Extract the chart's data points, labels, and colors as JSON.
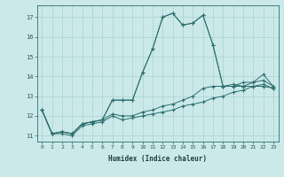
{
  "xlabel": "Humidex (Indice chaleur)",
  "bg_color": "#cbe9e9",
  "grid_color": "#a8d4cc",
  "line_color": "#2d6e6e",
  "xlim": [
    -0.5,
    23.5
  ],
  "ylim": [
    10.7,
    17.6
  ],
  "xticks": [
    0,
    1,
    2,
    3,
    4,
    5,
    6,
    7,
    8,
    9,
    10,
    11,
    12,
    13,
    14,
    15,
    16,
    17,
    18,
    19,
    20,
    21,
    22,
    23
  ],
  "yticks": [
    11,
    12,
    13,
    14,
    15,
    16,
    17
  ],
  "series": [
    [
      12.3,
      11.1,
      11.1,
      11.0,
      11.5,
      11.6,
      11.7,
      12.0,
      11.8,
      11.9,
      12.0,
      12.1,
      12.2,
      12.3,
      12.5,
      12.6,
      12.7,
      12.9,
      13.0,
      13.2,
      13.3,
      13.5,
      13.6,
      13.4
    ],
    [
      12.3,
      11.1,
      11.2,
      11.1,
      11.6,
      11.7,
      11.8,
      12.1,
      12.0,
      12.0,
      12.2,
      12.3,
      12.5,
      12.6,
      12.8,
      13.0,
      13.4,
      13.5,
      13.5,
      13.6,
      13.5,
      13.7,
      13.8,
      13.5
    ],
    [
      12.3,
      11.1,
      11.2,
      11.1,
      11.6,
      11.7,
      11.8,
      12.8,
      12.8,
      12.8,
      14.2,
      15.4,
      17.0,
      17.2,
      16.6,
      16.7,
      17.1,
      15.6,
      13.5,
      13.5,
      13.5,
      13.5,
      13.5,
      13.4
    ],
    [
      12.3,
      11.1,
      11.2,
      11.1,
      11.6,
      11.7,
      11.8,
      12.8,
      12.8,
      12.8,
      14.2,
      15.4,
      17.0,
      17.2,
      16.6,
      16.7,
      17.1,
      15.6,
      13.5,
      13.5,
      13.7,
      13.7,
      14.1,
      13.5
    ]
  ]
}
